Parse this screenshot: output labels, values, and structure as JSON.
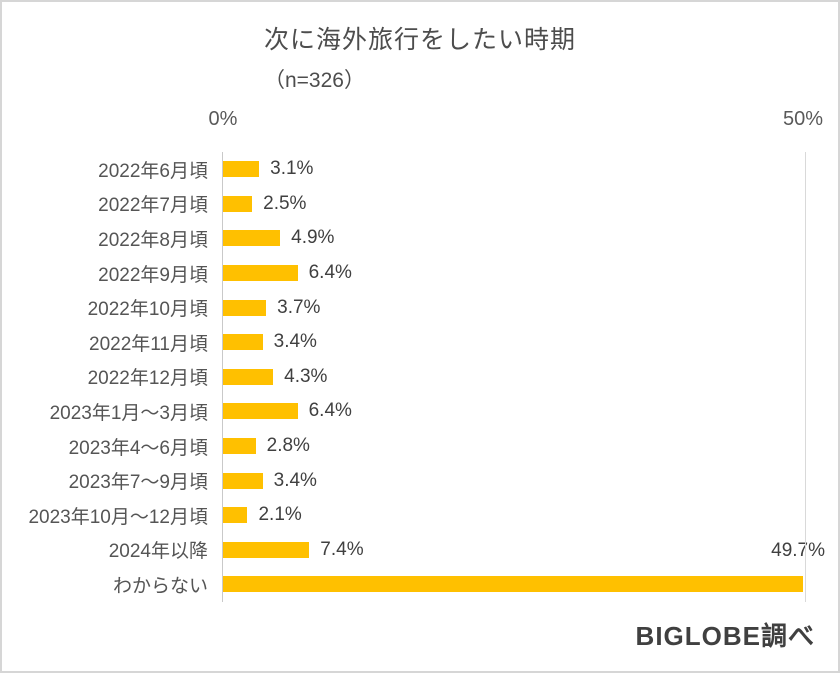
{
  "title": "次に海外旅行をしたい時期",
  "subtitle": "（n=326）",
  "footer": "BIGLOBE調べ",
  "colors": {
    "bar": "#FFC000",
    "axis_line": "#C9C9C9",
    "gridline": "#D9D9D9",
    "label_text": "#555555",
    "value_text": "#404040"
  },
  "chart_data": {
    "type": "bar",
    "orientation": "horizontal",
    "title": "次に海外旅行をしたい時期",
    "subtitle": "（n=326）",
    "categories": [
      "2022年6月頃",
      "2022年7月頃",
      "2022年8月頃",
      "2022年9月頃",
      "2022年10月頃",
      "2022年11月頃",
      "2022年12月頃",
      "2023年1月～3月頃",
      "2023年4～6月頃",
      "2023年7～9月頃",
      "2023年10月～12月頃",
      "2024年以降",
      "わからない"
    ],
    "values": [
      3.1,
      2.5,
      4.9,
      6.4,
      3.7,
      3.4,
      4.3,
      6.4,
      2.8,
      3.4,
      2.1,
      7.4,
      49.7
    ],
    "value_suffix": "%",
    "xlim": [
      0,
      50
    ],
    "x_tick_labels": [
      "0%",
      "50%"
    ],
    "grid": "vertical-edges-only",
    "legend": "none"
  }
}
